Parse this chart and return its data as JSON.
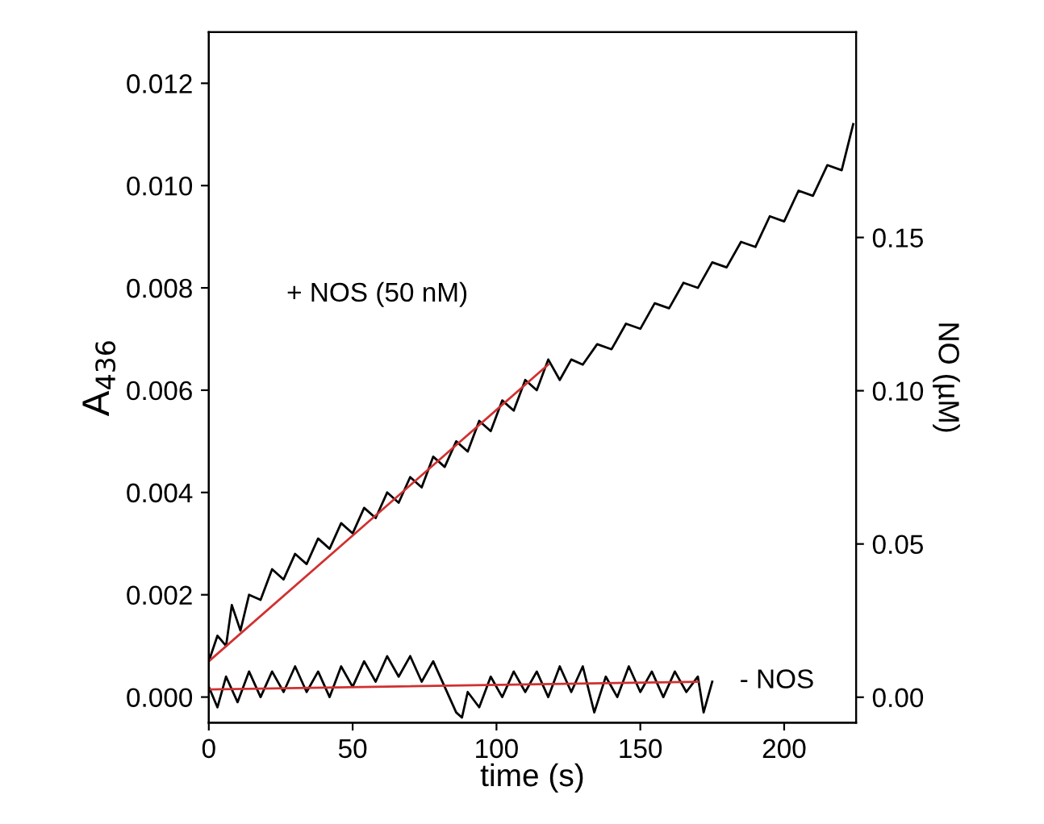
{
  "chart_data": {
    "type": "line",
    "xlabel": "time (s)",
    "ylabel": "A$_{436}$",
    "y2label": "NO (µM)",
    "xlim": [
      0,
      225
    ],
    "xticks": [
      0,
      50,
      100,
      150,
      200
    ],
    "ylim": [
      -0.0005,
      0.013
    ],
    "yticks": [
      {
        "value": 0,
        "label": "0.000"
      },
      {
        "value": 0.002,
        "label": "0.002"
      },
      {
        "value": 0.004,
        "label": "0.004"
      },
      {
        "value": 0.006,
        "label": "0.006"
      },
      {
        "value": 0.008,
        "label": "0.008"
      },
      {
        "value": 0.01,
        "label": "0.010"
      },
      {
        "value": 0.012,
        "label": "0.012"
      }
    ],
    "y2lim": [
      -0.0083,
      0.217
    ],
    "y2ticks": [
      {
        "value": 0,
        "label": "0.00"
      },
      {
        "value": 0.05,
        "label": "0.05"
      },
      {
        "value": 0.1,
        "label": "0.10"
      },
      {
        "value": 0.15,
        "label": "0.15"
      }
    ],
    "grid": false,
    "legend": false,
    "series": [
      {
        "color": "#000000",
        "x": [
          0,
          3,
          6,
          8,
          11,
          14,
          18,
          22,
          26,
          30,
          34,
          38,
          42,
          46,
          50,
          54,
          58,
          62,
          66,
          70,
          74,
          78,
          82,
          86,
          90,
          94,
          98,
          102,
          106,
          110,
          114,
          118,
          122,
          126,
          130,
          135,
          140,
          145,
          150,
          155,
          160,
          165,
          170,
          175,
          180,
          185,
          190,
          195,
          200,
          205,
          210,
          215,
          220,
          224
        ],
        "values": [
          0.0007,
          0.0012,
          0.001,
          0.0018,
          0.0013,
          0.002,
          0.0019,
          0.0025,
          0.0023,
          0.0028,
          0.0026,
          0.0031,
          0.0029,
          0.0034,
          0.0032,
          0.0037,
          0.0035,
          0.004,
          0.0038,
          0.0043,
          0.0041,
          0.0047,
          0.0045,
          0.005,
          0.0048,
          0.0054,
          0.0052,
          0.0058,
          0.0056,
          0.0062,
          0.006,
          0.0066,
          0.0062,
          0.0066,
          0.0065,
          0.0069,
          0.0068,
          0.0073,
          0.0072,
          0.0077,
          0.0076,
          0.0081,
          0.008,
          0.0085,
          0.0084,
          0.0089,
          0.0088,
          0.0094,
          0.0093,
          0.0099,
          0.0098,
          0.0104,
          0.0103,
          0.0112
        ]
      },
      {
        "color": "#000000",
        "x": [
          0,
          3,
          6,
          10,
          14,
          18,
          22,
          26,
          30,
          34,
          38,
          42,
          46,
          50,
          54,
          58,
          62,
          66,
          70,
          74,
          78,
          82,
          86,
          88,
          90,
          94,
          98,
          102,
          106,
          110,
          114,
          118,
          122,
          126,
          130,
          134,
          138,
          142,
          146,
          150,
          154,
          158,
          162,
          166,
          170,
          172,
          175
        ],
        "values": [
          0.0002,
          -0.0002,
          0.0004,
          -0.0001,
          0.0005,
          0.0,
          0.0005,
          0.0001,
          0.0006,
          0.0001,
          0.0005,
          0.0,
          0.0006,
          0.0002,
          0.0007,
          0.0003,
          0.0008,
          0.0004,
          0.0008,
          0.0003,
          0.0007,
          0.0002,
          -0.0003,
          -0.0004,
          0.0001,
          -0.0002,
          0.0004,
          0.0,
          0.0005,
          0.0001,
          0.0005,
          0.0,
          0.0006,
          0.0001,
          0.0006,
          -0.0003,
          0.0004,
          0.0,
          0.0006,
          0.0001,
          0.0005,
          0.0,
          0.0005,
          0.0001,
          0.0004,
          -0.0003,
          0.0003
        ]
      },
      {
        "color": "#d03030",
        "x": [
          0,
          118
        ],
        "values": [
          0.0007,
          0.0065
        ]
      },
      {
        "color": "#d03030",
        "x": [
          0,
          170
        ],
        "values": [
          0.00015,
          0.0003
        ]
      }
    ],
    "annotations": [
      "+ NOS (50 nM)",
      "- NOS"
    ]
  }
}
